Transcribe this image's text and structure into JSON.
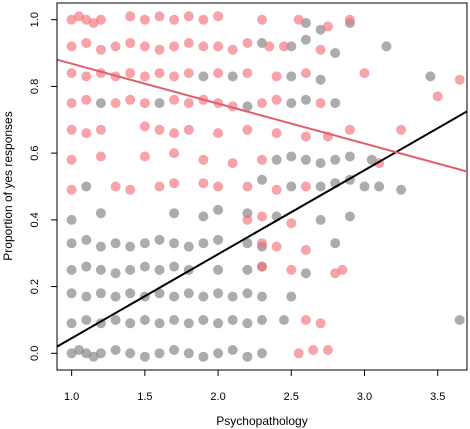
{
  "chart_data": {
    "type": "scatter",
    "title": "",
    "xlabel": "Psychopathology",
    "ylabel": "Proportion of yes responses",
    "xlim": [
      0.9,
      3.7
    ],
    "ylim": [
      -0.05,
      1.05
    ],
    "x_ticks": [
      1.0,
      1.5,
      2.0,
      2.5,
      3.0,
      3.5
    ],
    "x_tick_labels": [
      "1.0",
      "1.5",
      "2.0",
      "2.5",
      "3.0",
      "3.5"
    ],
    "y_ticks": [
      0.0,
      0.2,
      0.4,
      0.6,
      0.8,
      1.0
    ],
    "y_tick_labels": [
      "0.0",
      "0.2",
      "0.4",
      "0.6",
      "0.8",
      "1.0"
    ],
    "grid": false,
    "legend": "none",
    "series": [
      {
        "color": "#808080",
        "points": [
          [
            1.0,
            0.0
          ],
          [
            1.05,
            0.01
          ],
          [
            1.1,
            0.0
          ],
          [
            1.15,
            -0.01
          ],
          [
            1.2,
            0.0
          ],
          [
            1.3,
            0.01
          ],
          [
            1.4,
            0.0
          ],
          [
            1.5,
            -0.01
          ],
          [
            1.6,
            0.0
          ],
          [
            1.7,
            0.01
          ],
          [
            1.8,
            0.0
          ],
          [
            1.9,
            -0.01
          ],
          [
            2.0,
            0.0
          ],
          [
            2.1,
            0.01
          ],
          [
            2.2,
            -0.01
          ],
          [
            2.3,
            0.0
          ],
          [
            1.0,
            0.09
          ],
          [
            1.1,
            0.1
          ],
          [
            1.2,
            0.09
          ],
          [
            1.3,
            0.1
          ],
          [
            1.4,
            0.09
          ],
          [
            1.5,
            0.1
          ],
          [
            1.6,
            0.09
          ],
          [
            1.7,
            0.1
          ],
          [
            1.8,
            0.09
          ],
          [
            1.9,
            0.1
          ],
          [
            2.0,
            0.09
          ],
          [
            2.1,
            0.1
          ],
          [
            2.2,
            0.09
          ],
          [
            2.3,
            0.1
          ],
          [
            2.45,
            0.1
          ],
          [
            3.65,
            0.1
          ],
          [
            1.0,
            0.18
          ],
          [
            1.1,
            0.17
          ],
          [
            1.2,
            0.18
          ],
          [
            1.3,
            0.17
          ],
          [
            1.4,
            0.18
          ],
          [
            1.5,
            0.17
          ],
          [
            1.6,
            0.18
          ],
          [
            1.7,
            0.17
          ],
          [
            1.8,
            0.18
          ],
          [
            1.9,
            0.17
          ],
          [
            2.0,
            0.18
          ],
          [
            2.1,
            0.17
          ],
          [
            2.2,
            0.18
          ],
          [
            2.3,
            0.17
          ],
          [
            2.5,
            0.17
          ],
          [
            1.0,
            0.25
          ],
          [
            1.1,
            0.26
          ],
          [
            1.2,
            0.25
          ],
          [
            1.3,
            0.24
          ],
          [
            1.4,
            0.25
          ],
          [
            1.5,
            0.26
          ],
          [
            1.6,
            0.25
          ],
          [
            1.7,
            0.26
          ],
          [
            1.8,
            0.25
          ],
          [
            2.0,
            0.25
          ],
          [
            2.2,
            0.25
          ],
          [
            2.3,
            0.26
          ],
          [
            2.6,
            0.24
          ],
          [
            1.0,
            0.33
          ],
          [
            1.1,
            0.34
          ],
          [
            1.2,
            0.32
          ],
          [
            1.3,
            0.33
          ],
          [
            1.4,
            0.32
          ],
          [
            1.5,
            0.33
          ],
          [
            1.6,
            0.34
          ],
          [
            1.7,
            0.33
          ],
          [
            1.8,
            0.32
          ],
          [
            1.9,
            0.33
          ],
          [
            2.0,
            0.34
          ],
          [
            2.2,
            0.33
          ],
          [
            2.3,
            0.32
          ],
          [
            2.8,
            0.33
          ],
          [
            1.0,
            0.4
          ],
          [
            1.2,
            0.42
          ],
          [
            1.7,
            0.42
          ],
          [
            1.9,
            0.41
          ],
          [
            2.0,
            0.43
          ],
          [
            2.2,
            0.42
          ],
          [
            2.4,
            0.41
          ],
          [
            2.7,
            0.4
          ],
          [
            2.9,
            0.41
          ],
          [
            1.1,
            0.5
          ],
          [
            2.3,
            0.52
          ],
          [
            2.5,
            0.5
          ],
          [
            2.7,
            0.5
          ],
          [
            2.8,
            0.51
          ],
          [
            2.9,
            0.52
          ],
          [
            3.0,
            0.5
          ],
          [
            3.1,
            0.5
          ],
          [
            3.25,
            0.49
          ],
          [
            2.4,
            0.58
          ],
          [
            2.5,
            0.59
          ],
          [
            2.6,
            0.58
          ],
          [
            2.7,
            0.57
          ],
          [
            2.8,
            0.58
          ],
          [
            2.9,
            0.59
          ],
          [
            3.05,
            0.58
          ],
          [
            1.2,
            0.75
          ],
          [
            1.6,
            0.75
          ],
          [
            2.2,
            0.74
          ],
          [
            2.5,
            0.75
          ],
          [
            2.6,
            0.76
          ],
          [
            2.8,
            0.75
          ],
          [
            1.9,
            0.83
          ],
          [
            2.1,
            0.83
          ],
          [
            2.5,
            0.83
          ],
          [
            2.7,
            0.82
          ],
          [
            3.45,
            0.83
          ],
          [
            2.3,
            0.93
          ],
          [
            2.5,
            0.92
          ],
          [
            2.6,
            0.94
          ],
          [
            2.8,
            0.9
          ],
          [
            3.15,
            0.92
          ],
          [
            2.6,
            0.99
          ],
          [
            2.7,
            0.97
          ],
          [
            2.9,
            0.99
          ]
        ]
      },
      {
        "color": "#f2727b",
        "points": [
          [
            1.0,
            1.0
          ],
          [
            1.05,
            1.01
          ],
          [
            1.1,
            1.0
          ],
          [
            1.15,
            0.99
          ],
          [
            1.2,
            1.0
          ],
          [
            1.4,
            1.01
          ],
          [
            1.5,
            1.0
          ],
          [
            1.6,
            1.01
          ],
          [
            1.7,
            1.0
          ],
          [
            1.8,
            1.01
          ],
          [
            1.9,
            1.0
          ],
          [
            2.0,
            1.01
          ],
          [
            2.3,
            1.0
          ],
          [
            2.55,
            1.0
          ],
          [
            2.75,
            0.98
          ],
          [
            2.9,
            1.0
          ],
          [
            1.0,
            0.92
          ],
          [
            1.1,
            0.93
          ],
          [
            1.2,
            0.91
          ],
          [
            1.3,
            0.92
          ],
          [
            1.4,
            0.93
          ],
          [
            1.5,
            0.92
          ],
          [
            1.6,
            0.91
          ],
          [
            1.7,
            0.92
          ],
          [
            1.8,
            0.93
          ],
          [
            1.9,
            0.92
          ],
          [
            2.0,
            0.92
          ],
          [
            2.1,
            0.91
          ],
          [
            2.2,
            0.93
          ],
          [
            2.35,
            0.92
          ],
          [
            2.45,
            0.92
          ],
          [
            2.7,
            0.91
          ],
          [
            1.0,
            0.84
          ],
          [
            1.1,
            0.83
          ],
          [
            1.2,
            0.84
          ],
          [
            1.3,
            0.83
          ],
          [
            1.4,
            0.84
          ],
          [
            1.5,
            0.83
          ],
          [
            1.6,
            0.84
          ],
          [
            1.7,
            0.83
          ],
          [
            1.8,
            0.84
          ],
          [
            2.0,
            0.84
          ],
          [
            2.2,
            0.84
          ],
          [
            2.4,
            0.83
          ],
          [
            2.6,
            0.84
          ],
          [
            3.0,
            0.84
          ],
          [
            3.65,
            0.82
          ],
          [
            1.0,
            0.75
          ],
          [
            1.1,
            0.76
          ],
          [
            1.3,
            0.75
          ],
          [
            1.4,
            0.76
          ],
          [
            1.5,
            0.75
          ],
          [
            1.7,
            0.76
          ],
          [
            1.8,
            0.75
          ],
          [
            1.9,
            0.76
          ],
          [
            2.0,
            0.75
          ],
          [
            2.1,
            0.74
          ],
          [
            2.3,
            0.75
          ],
          [
            2.4,
            0.76
          ],
          [
            2.7,
            0.75
          ],
          [
            3.5,
            0.77
          ],
          [
            1.0,
            0.67
          ],
          [
            1.1,
            0.66
          ],
          [
            1.2,
            0.67
          ],
          [
            1.5,
            0.68
          ],
          [
            1.6,
            0.67
          ],
          [
            1.7,
            0.66
          ],
          [
            1.8,
            0.67
          ],
          [
            2.0,
            0.66
          ],
          [
            2.2,
            0.67
          ],
          [
            2.4,
            0.66
          ],
          [
            2.6,
            0.65
          ],
          [
            2.75,
            0.65
          ],
          [
            2.9,
            0.67
          ],
          [
            3.25,
            0.67
          ],
          [
            1.0,
            0.58
          ],
          [
            1.2,
            0.59
          ],
          [
            1.5,
            0.59
          ],
          [
            1.7,
            0.6
          ],
          [
            1.9,
            0.58
          ],
          [
            2.1,
            0.57
          ],
          [
            2.3,
            0.58
          ],
          [
            3.1,
            0.57
          ],
          [
            1.0,
            0.49
          ],
          [
            1.3,
            0.5
          ],
          [
            1.4,
            0.49
          ],
          [
            1.6,
            0.5
          ],
          [
            1.7,
            0.51
          ],
          [
            1.9,
            0.51
          ],
          [
            2.0,
            0.5
          ],
          [
            2.2,
            0.5
          ],
          [
            2.4,
            0.49
          ],
          [
            2.6,
            0.5
          ],
          [
            2.2,
            0.4
          ],
          [
            2.3,
            0.41
          ],
          [
            2.5,
            0.39
          ],
          [
            2.3,
            0.33
          ],
          [
            2.4,
            0.32
          ],
          [
            2.6,
            0.31
          ],
          [
            2.3,
            0.26
          ],
          [
            2.5,
            0.25
          ],
          [
            2.8,
            0.24
          ],
          [
            2.85,
            0.25
          ],
          [
            2.6,
            0.1
          ],
          [
            2.7,
            0.09
          ],
          [
            2.55,
            0.0
          ],
          [
            2.65,
            0.01
          ],
          [
            2.75,
            0.01
          ]
        ]
      }
    ],
    "fit_lines": [
      {
        "color": "#000000",
        "x": [
          0.9,
          3.7
        ],
        "y": [
          0.02,
          0.725
        ]
      },
      {
        "color": "#e0606e",
        "x": [
          0.9,
          3.7
        ],
        "y": [
          0.88,
          0.545
        ]
      }
    ]
  }
}
